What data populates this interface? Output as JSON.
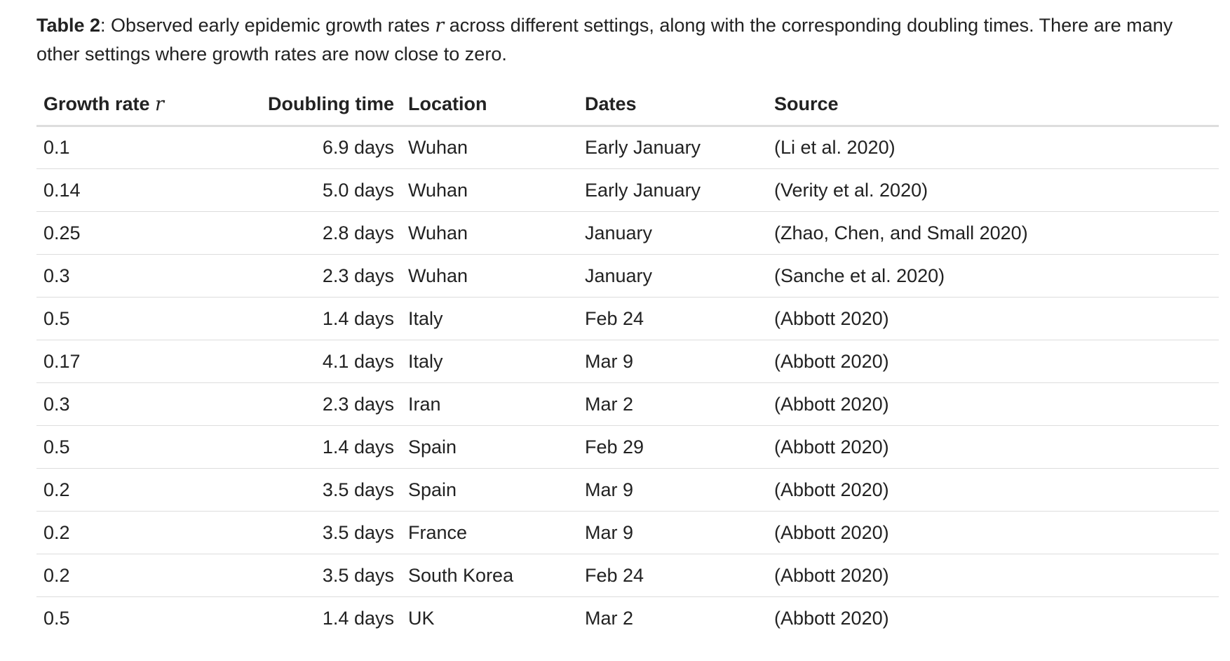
{
  "caption": {
    "label": "Table 2",
    "text_before_var": ": Observed early epidemic growth rates ",
    "var": "r",
    "text_after_var": " across different settings, along with the corresponding doubling times. There are many other settings where growth rates are now close to zero."
  },
  "table": {
    "headers": {
      "growth_rate": "Growth rate ",
      "growth_rate_var": "r",
      "doubling_time": "Doubling time",
      "location": "Location",
      "dates": "Dates",
      "source": "Source"
    },
    "rows": [
      {
        "rate": "0.1",
        "doubling": "6.9 days",
        "location": "Wuhan",
        "dates": "Early January",
        "source": "(Li et al. 2020)"
      },
      {
        "rate": "0.14",
        "doubling": "5.0 days",
        "location": "Wuhan",
        "dates": "Early January",
        "source": "(Verity et al. 2020)"
      },
      {
        "rate": "0.25",
        "doubling": "2.8 days",
        "location": "Wuhan",
        "dates": "January",
        "source": "(Zhao, Chen, and Small 2020)"
      },
      {
        "rate": "0.3",
        "doubling": "2.3 days",
        "location": "Wuhan",
        "dates": "January",
        "source": "(Sanche et al. 2020)"
      },
      {
        "rate": "0.5",
        "doubling": "1.4 days",
        "location": "Italy",
        "dates": "Feb 24",
        "source": "(Abbott 2020)"
      },
      {
        "rate": "0.17",
        "doubling": "4.1 days",
        "location": "Italy",
        "dates": "Mar 9",
        "source": "(Abbott 2020)"
      },
      {
        "rate": "0.3",
        "doubling": "2.3 days",
        "location": "Iran",
        "dates": "Mar 2",
        "source": "(Abbott 2020)"
      },
      {
        "rate": "0.5",
        "doubling": "1.4 days",
        "location": "Spain",
        "dates": "Feb 29",
        "source": "(Abbott 2020)"
      },
      {
        "rate": "0.2",
        "doubling": "3.5 days",
        "location": "Spain",
        "dates": "Mar 9",
        "source": "(Abbott 2020)"
      },
      {
        "rate": "0.2",
        "doubling": "3.5 days",
        "location": "France",
        "dates": "Mar 9",
        "source": "(Abbott 2020)"
      },
      {
        "rate": "0.2",
        "doubling": "3.5 days",
        "location": "South Korea",
        "dates": "Feb 24",
        "source": "(Abbott 2020)"
      },
      {
        "rate": "0.5",
        "doubling": "1.4 days",
        "location": "UK",
        "dates": "Mar 2",
        "source": "(Abbott 2020)"
      }
    ]
  }
}
